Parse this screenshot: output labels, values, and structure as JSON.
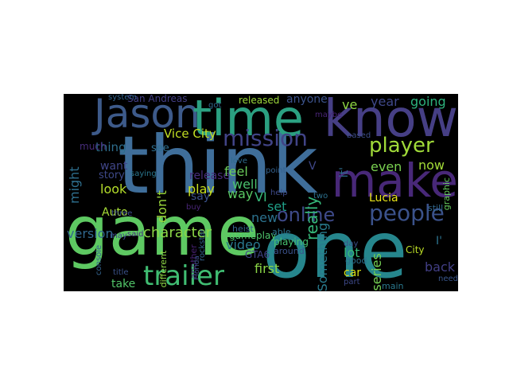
{
  "word_cloud": {
    "background": "#000000",
    "words": [
      {
        "text": "think",
        "color": "#3f6e9a"
      },
      {
        "text": "one",
        "color": "#26868d"
      },
      {
        "text": "game",
        "color": "#5ec962"
      },
      {
        "text": "know",
        "color": "#463f85"
      },
      {
        "text": "Jason",
        "color": "#3d5a8a"
      },
      {
        "text": "time",
        "color": "#2ba081"
      },
      {
        "text": "make",
        "color": "#482878"
      },
      {
        "text": "trailer",
        "color": "#40bd72"
      },
      {
        "text": "people",
        "color": "#3b528b"
      },
      {
        "text": "mission",
        "color": "#414487"
      },
      {
        "text": "player",
        "color": "#a0da39"
      },
      {
        "text": "online",
        "color": "#3e4a89"
      },
      {
        "text": "Vice City",
        "color": "#c2df23"
      },
      {
        "text": "San Andreas",
        "color": "#433e85"
      },
      {
        "text": "Lucia",
        "color": "#eae51a"
      },
      {
        "text": "character",
        "color": "#8bd646"
      },
      {
        "text": "video",
        "color": "#2a788e"
      },
      {
        "text": "really",
        "color": "#35b779"
      },
      {
        "text": "Something",
        "color": "#297b8e"
      },
      {
        "text": "series",
        "color": "#75d054"
      },
      {
        "text": "version",
        "color": "#31688e"
      },
      {
        "text": "look",
        "color": "#b5de2b"
      },
      {
        "text": "Auto",
        "color": "#a5db36"
      },
      {
        "text": "thing",
        "color": "#2e6e8e"
      },
      {
        "text": "story",
        "color": "#3e4989"
      },
      {
        "text": "release",
        "color": "#472c7a"
      },
      {
        "text": "see",
        "color": "#2e6e8e"
      },
      {
        "text": "play",
        "color": "#c8e020"
      },
      {
        "text": "feel",
        "color": "#6ccd5a"
      },
      {
        "text": "well",
        "color": "#4ac16d"
      },
      {
        "text": "way",
        "color": "#5ac864"
      },
      {
        "text": "say",
        "color": "#3b528b"
      },
      {
        "text": "don't",
        "color": "#9bd93c"
      },
      {
        "text": "want",
        "color": "#404688"
      },
      {
        "text": "VI",
        "color": "#37b878"
      },
      {
        "text": "set",
        "color": "#1f9f88"
      },
      {
        "text": "new",
        "color": "#2c728e"
      },
      {
        "text": "first",
        "color": "#8bd646"
      },
      {
        "text": "take",
        "color": "#52c569"
      },
      {
        "text": "car",
        "color": "#d8e219"
      },
      {
        "text": "lot",
        "color": "#35b779"
      },
      {
        "text": "back",
        "color": "#423f85"
      },
      {
        "text": "even",
        "color": "#7ad151"
      },
      {
        "text": "now",
        "color": "#a2da37"
      },
      {
        "text": "year",
        "color": "#3f4889"
      },
      {
        "text": "going",
        "color": "#2db27d"
      },
      {
        "text": "ve",
        "color": "#8fd744"
      },
      {
        "text": "anyone",
        "color": "#3b528b"
      },
      {
        "text": "released",
        "color": "#9dd93b"
      },
      {
        "text": "might",
        "color": "#2e6f8e"
      },
      {
        "text": "much",
        "color": "#472d7b"
      },
      {
        "text": "gameplay",
        "color": "#4ec36b"
      },
      {
        "text": "GTA6",
        "color": "#404588"
      },
      {
        "text": "City",
        "color": "#bddf26"
      },
      {
        "text": "need",
        "color": "#39568c"
      },
      {
        "text": "main",
        "color": "#2a788e"
      },
      {
        "text": "playing",
        "color": "#46c06f"
      },
      {
        "text": "around",
        "color": "#3b528b"
      },
      {
        "text": "able",
        "color": "#2c738e"
      },
      {
        "text": "different",
        "color": "#8ed645"
      },
      {
        "text": "another",
        "color": "#482173"
      },
      {
        "text": "three",
        "color": "#3e4c8a"
      },
      {
        "text": "said",
        "color": "#46327e"
      },
      {
        "text": "may",
        "color": "#3f4889"
      },
      {
        "text": "title",
        "color": "#3b528b"
      },
      {
        "text": "console",
        "color": "#33638d"
      },
      {
        "text": "graphic",
        "color": "#65cb5e"
      },
      {
        "text": "still",
        "color": "#31688e"
      },
      {
        "text": "point",
        "color": "#34618d"
      },
      {
        "text": "help",
        "color": "#3e4a89"
      },
      {
        "text": "buy",
        "color": "#482576"
      },
      {
        "text": "heist",
        "color": "#32658e"
      },
      {
        "text": "good",
        "color": "#2d708e"
      },
      {
        "text": "day",
        "color": "#3b528b"
      },
      {
        "text": "part",
        "color": "#3e4989"
      },
      {
        "text": "love",
        "color": "#2f6b8e"
      },
      {
        "text": "got",
        "color": "#30698e"
      },
      {
        "text": "saying",
        "color": "#2a768e"
      },
      {
        "text": "system",
        "color": "#32648e"
      },
      {
        "text": "based",
        "color": "#3d4e8a"
      },
      {
        "text": "maybe",
        "color": "#482475"
      },
      {
        "text": "two",
        "color": "#2c718e"
      },
      {
        "text": "I'",
        "color": "#2c728e"
      },
      {
        "text": "it'",
        "color": "#2e6e8e"
      },
      {
        "text": "V",
        "color": "#3f4788"
      },
      {
        "text": "rockstar",
        "color": "#34618d"
      },
      {
        "text": "Florida",
        "color": "#3b528b"
      }
    ]
  }
}
